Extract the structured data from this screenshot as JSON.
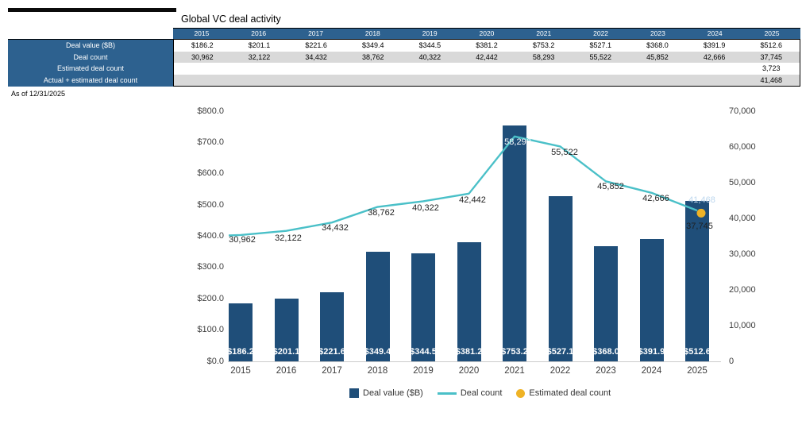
{
  "title": "Global VC deal activity",
  "as_of_note": "As of 12/31/2025",
  "table": {
    "years": [
      "2015",
      "2016",
      "2017",
      "2018",
      "2019",
      "2020",
      "2021",
      "2022",
      "2023",
      "2024",
      "2025"
    ],
    "rows": [
      {
        "label": "Deal value ($B)",
        "values": [
          "$186.2",
          "$201.1",
          "$221.6",
          "$349.4",
          "$344.5",
          "$381.2",
          "$753.2",
          "$527.1",
          "$368.0",
          "$391.9",
          "$512.6"
        ]
      },
      {
        "label": "Deal count",
        "values": [
          "30,962",
          "32,122",
          "34,432",
          "38,762",
          "40,322",
          "42,442",
          "58,293",
          "55,522",
          "45,852",
          "42,666",
          "37,745"
        ]
      },
      {
        "label": "Estimated deal count",
        "values": [
          "",
          "",
          "",
          "",
          "",
          "",
          "",
          "",
          "",
          "",
          "3,723"
        ]
      },
      {
        "label": "Actual + estimated deal count",
        "values": [
          "",
          "",
          "",
          "",
          "",
          "",
          "",
          "",
          "",
          "",
          "41,468"
        ]
      }
    ]
  },
  "chart_data": {
    "type": "combo bar+line",
    "title": "Global VC deal activity",
    "categories": [
      "2015",
      "2016",
      "2017",
      "2018",
      "2019",
      "2020",
      "2021",
      "2022",
      "2023",
      "2024",
      "2025"
    ],
    "series": [
      {
        "name": "Deal value ($B)",
        "type": "bar",
        "axis": "left",
        "color": "#1f4e79",
        "values": [
          186.2,
          201.1,
          221.6,
          349.4,
          344.5,
          381.2,
          753.2,
          527.1,
          368.0,
          391.9,
          512.6
        ]
      },
      {
        "name": "Deal count",
        "type": "line",
        "axis": "right",
        "color": "#4ac0c8",
        "values": [
          30962,
          32122,
          34432,
          38762,
          40322,
          42442,
          58293,
          55522,
          45852,
          42666,
          37745
        ]
      },
      {
        "name": "Estimated deal count",
        "type": "scatter",
        "axis": "right",
        "color": "#efb326",
        "points": [
          {
            "x": "2025",
            "value": 41468
          }
        ]
      }
    ],
    "bar_labels": [
      "$186.2",
      "$201.1",
      "$221.6",
      "$349.4",
      "$344.5",
      "$381.2",
      "$753.2",
      "$527.1",
      "$368.0",
      "$391.9",
      "$512.6"
    ],
    "line_labels": [
      "30,962",
      "32,122",
      "34,432",
      "38,762",
      "40,322",
      "42,442",
      "58,293",
      "55,522",
      "45,852",
      "42,666",
      "37,745"
    ],
    "estimated_point_label": "41,468",
    "estimated_deal_count_2025": 3723,
    "actual_plus_estimated_2025": 41468,
    "left_axis": {
      "min": 0,
      "max": 800,
      "tick_labels": [
        "$0.0",
        "$100.0",
        "$200.0",
        "$300.0",
        "$400.0",
        "$500.0",
        "$600.0",
        "$700.0",
        "$800.0"
      ]
    },
    "right_axis": {
      "min": 0,
      "max": 70000,
      "tick_labels": [
        "0",
        "10,000",
        "20,000",
        "30,000",
        "40,000",
        "50,000",
        "60,000",
        "70,000"
      ]
    },
    "legend": [
      {
        "label": "Deal value ($B)",
        "swatch": "square",
        "color": "#1f4e79"
      },
      {
        "label": "Deal count",
        "swatch": "line",
        "color": "#4ac0c8"
      },
      {
        "label": "Estimated deal count",
        "swatch": "circle",
        "color": "#efb326"
      }
    ],
    "grid": "off",
    "legend_position": "bottom-center"
  },
  "colors": {
    "bar": "#1f4e79",
    "line": "#4ac0c8",
    "estimated_point": "#efb326",
    "table_header_bg": "#2d618f",
    "table_alt_row_bg": "#d9d9d9",
    "estimated_label_text": "#bdd7ee"
  }
}
